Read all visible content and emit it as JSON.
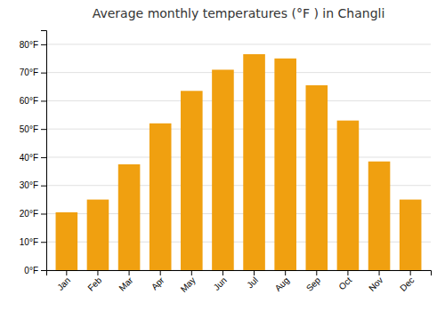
{
  "chart_data": {
    "type": "bar",
    "title": "Average monthly temperatures (°F ) in Changli",
    "categories": [
      "Jan",
      "Feb",
      "Mar",
      "Apr",
      "May",
      "Jun",
      "Jul",
      "Aug",
      "Sep",
      "Oct",
      "Nov",
      "Dec"
    ],
    "values": [
      20.5,
      25.0,
      37.5,
      52.0,
      63.5,
      71.0,
      76.5,
      75.0,
      65.5,
      53.0,
      38.5,
      25.0
    ],
    "color": "#F0A010",
    "ylim": [
      0,
      85
    ],
    "yticks": [
      {
        "value": 0,
        "label": "0°F"
      },
      {
        "value": 10,
        "label": "10°F"
      },
      {
        "value": 20,
        "label": "20°F"
      },
      {
        "value": 30,
        "label": "30°F"
      },
      {
        "value": 40,
        "label": "40°F"
      },
      {
        "value": 50,
        "label": "50°F"
      },
      {
        "value": 60,
        "label": "60°F"
      },
      {
        "value": 70,
        "label": "70°F"
      },
      {
        "value": 80,
        "label": "80°F"
      }
    ],
    "grid": true
  }
}
